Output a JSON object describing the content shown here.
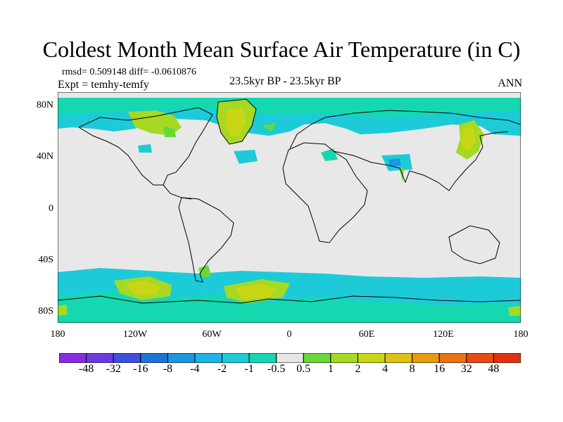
{
  "title": "Coldest Month Mean Surface Air Temperature (in C)",
  "stats_line": "rmsd= 0.509148 diff= -0.0610876",
  "experiment": "Expt = temhy-temfy",
  "period": "23.5kyr BP - 23.5kyr BP",
  "season": "ANN",
  "lat_ticks": [
    "80N",
    "40N",
    "0",
    "40S",
    "80S"
  ],
  "lon_ticks": [
    "180",
    "120W",
    "60W",
    "0",
    "60E",
    "120E",
    "180"
  ],
  "colorbar": {
    "labels": [
      "-48",
      "-32",
      "-16",
      "-8",
      "-4",
      "-2",
      "-1",
      "-0.5",
      "0.5",
      "1",
      "2",
      "4",
      "8",
      "16",
      "32",
      "48"
    ],
    "colors": [
      "#8a2be2",
      "#6a3be0",
      "#3f4fe0",
      "#1e74d6",
      "#1c96df",
      "#1db5e6",
      "#1dcbd8",
      "#16d8b0",
      "#e6e6e6",
      "#69d93a",
      "#a6d923",
      "#c9d616",
      "#dfc212",
      "#e79b10",
      "#e97412",
      "#e94a10",
      "#e23010"
    ]
  },
  "map_colors": {
    "ocean_land": "#e8e8e8",
    "cyan": "#1dcbd8",
    "teal": "#16d8b0",
    "green": "#69d93a",
    "yellowgreen": "#a6d923",
    "yellow": "#c9d616",
    "blue": "#1c96df"
  }
}
